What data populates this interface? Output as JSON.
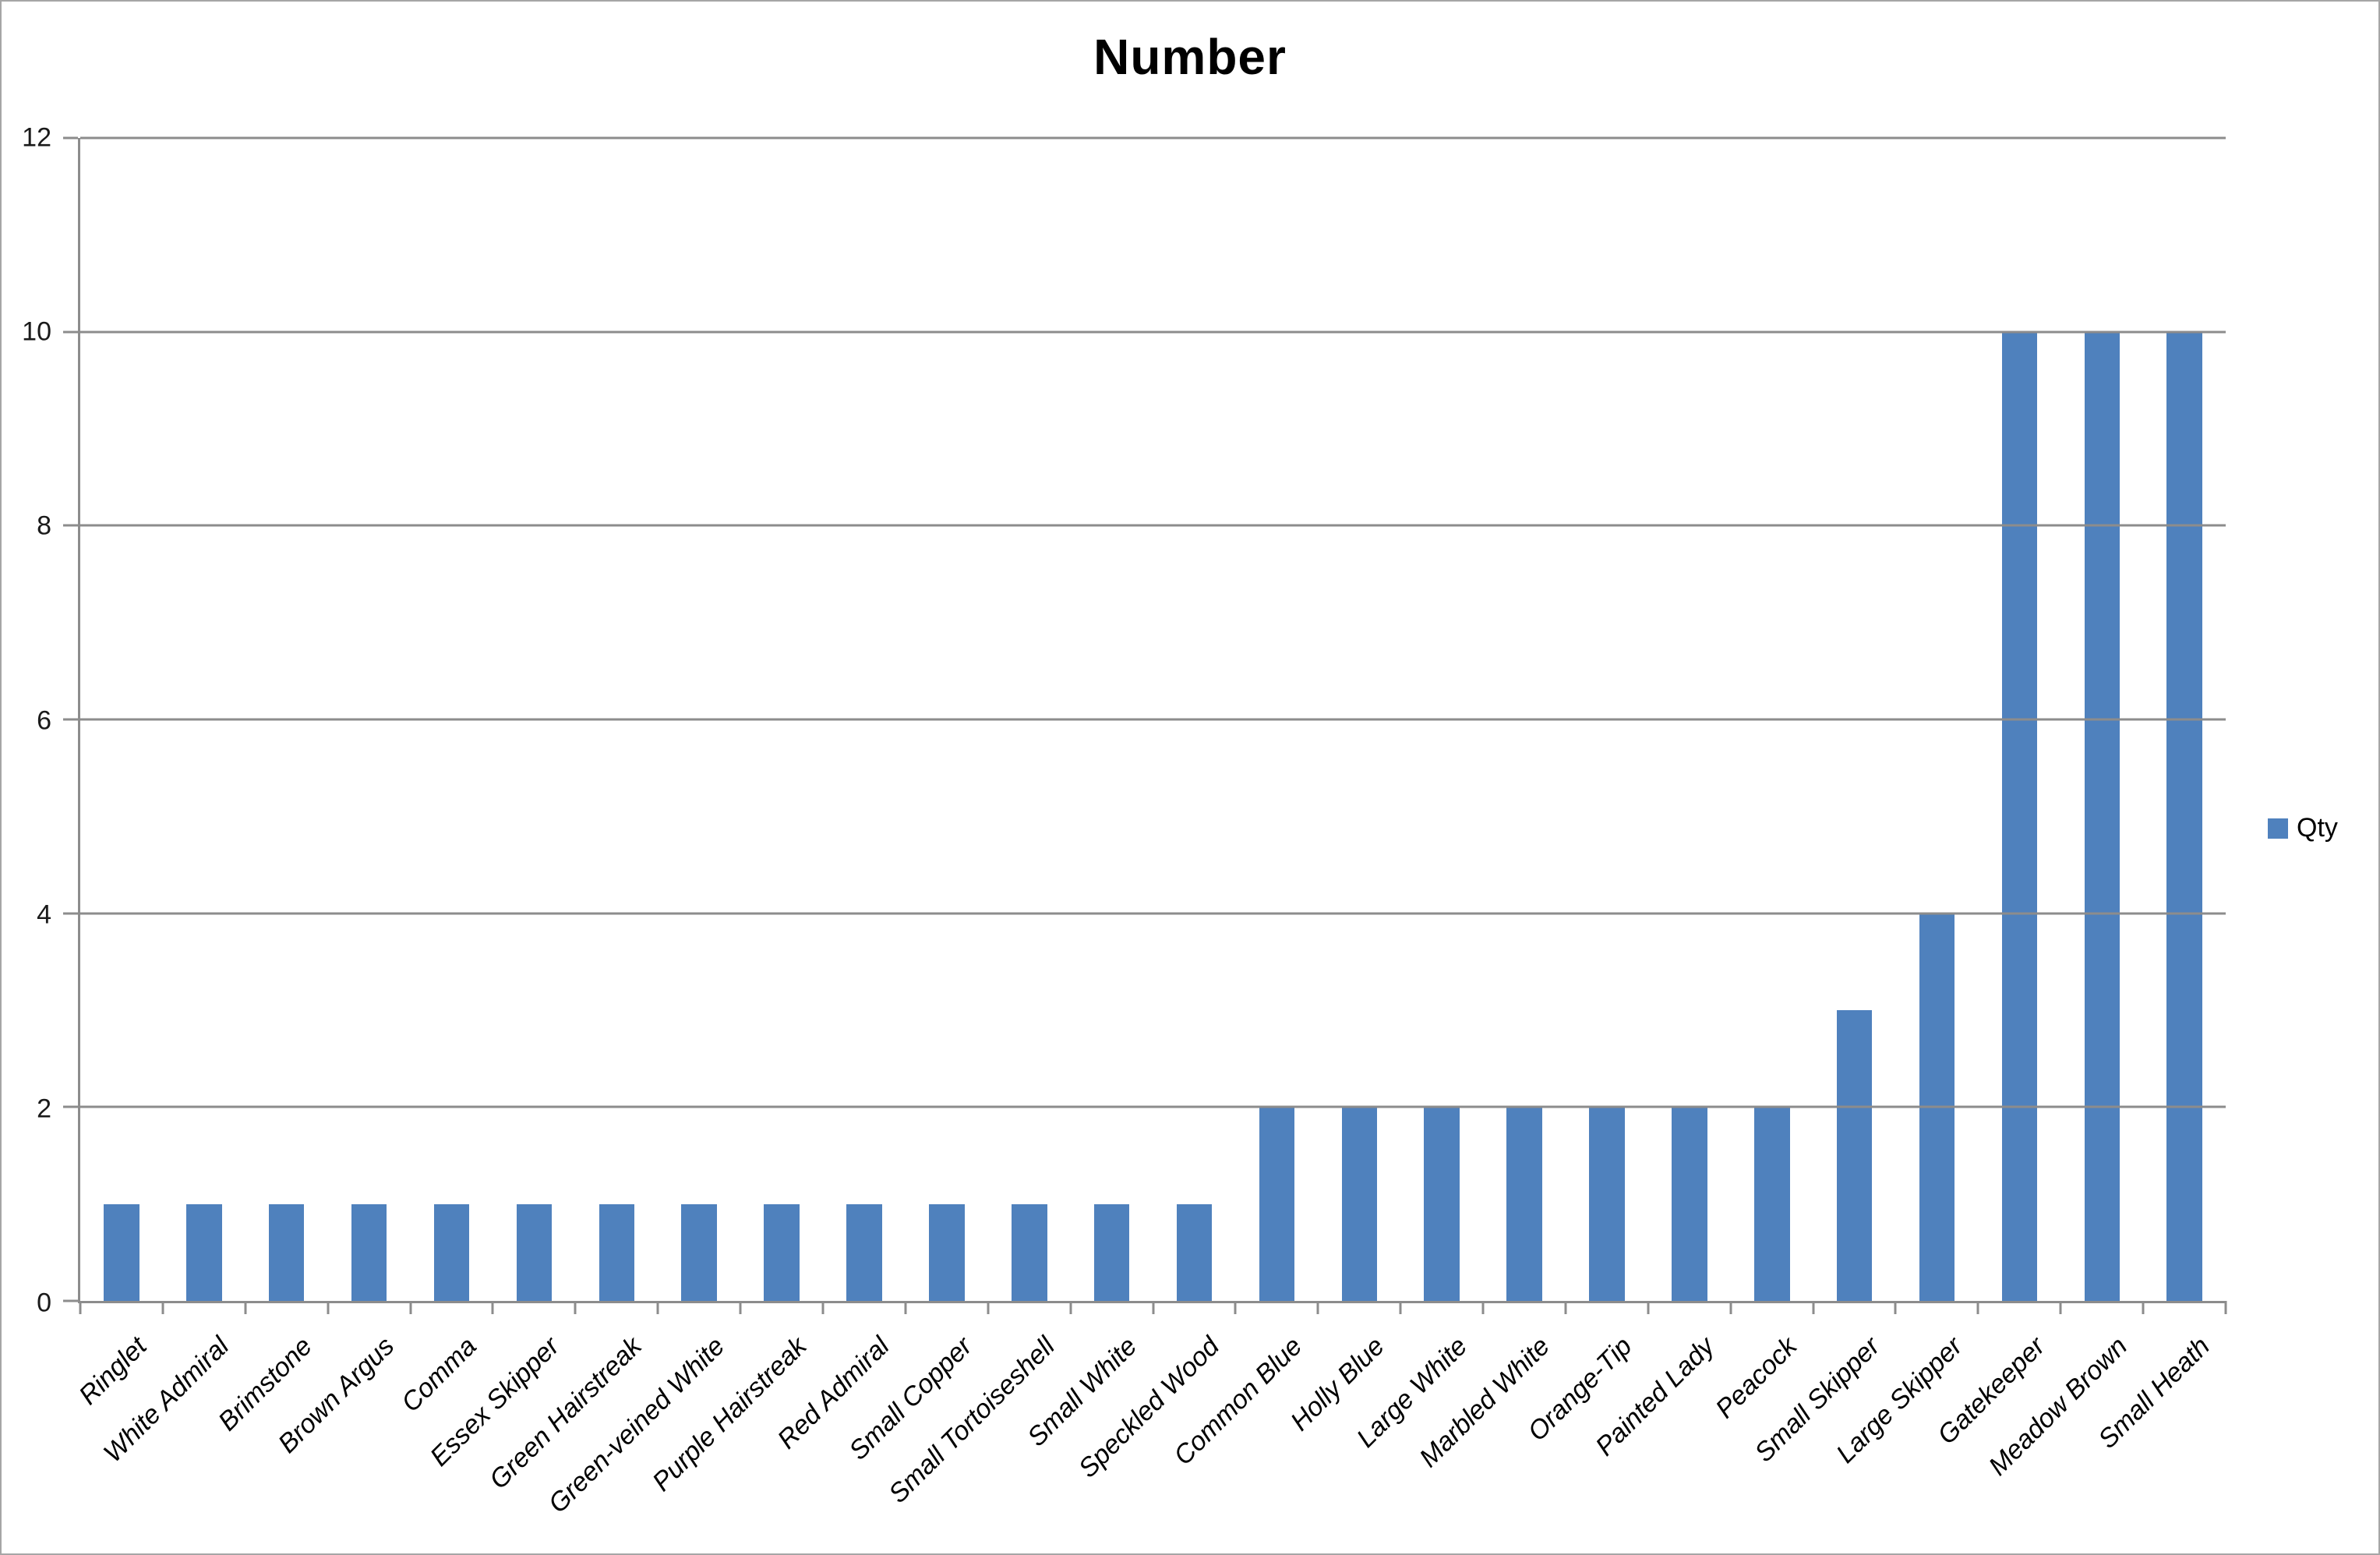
{
  "chart_data": {
    "type": "bar",
    "title": "Number",
    "categories": [
      "Ringlet",
      "White Admiral",
      "Brimstone",
      "Brown Argus",
      "Comma",
      "Essex Skipper",
      "Green Hairstreak",
      "Green-veined White",
      "Purple Hairstreak",
      "Red Admiral",
      "Small Copper",
      "Small Tortoiseshell",
      "Small White",
      "Speckled Wood",
      "Common Blue",
      "Holly Blue",
      "Large White",
      "Marbled White",
      "Orange-Tip",
      "Painted Lady",
      "Peacock",
      "Small Skipper",
      "Large Skipper",
      "Gatekeeper",
      "Meadow Brown",
      "Small Heath"
    ],
    "series": [
      {
        "name": "Qty",
        "values": [
          1,
          1,
          1,
          1,
          1,
          1,
          1,
          1,
          1,
          1,
          1,
          1,
          1,
          1,
          2,
          2,
          2,
          2,
          2,
          2,
          2,
          3,
          4,
          10,
          10,
          10
        ]
      }
    ],
    "xlabel": "",
    "ylabel": "",
    "ylim": [
      0,
      12
    ],
    "yticks": [
      0,
      2,
      4,
      6,
      8,
      10,
      12
    ],
    "grid": true,
    "legend_position": "right",
    "colors": {
      "bar": "#4F81BD",
      "gridline": "#8C8C8C",
      "axis": "#8C8C8C",
      "frame_border": "#A6A6A6",
      "text": "#000000"
    }
  }
}
